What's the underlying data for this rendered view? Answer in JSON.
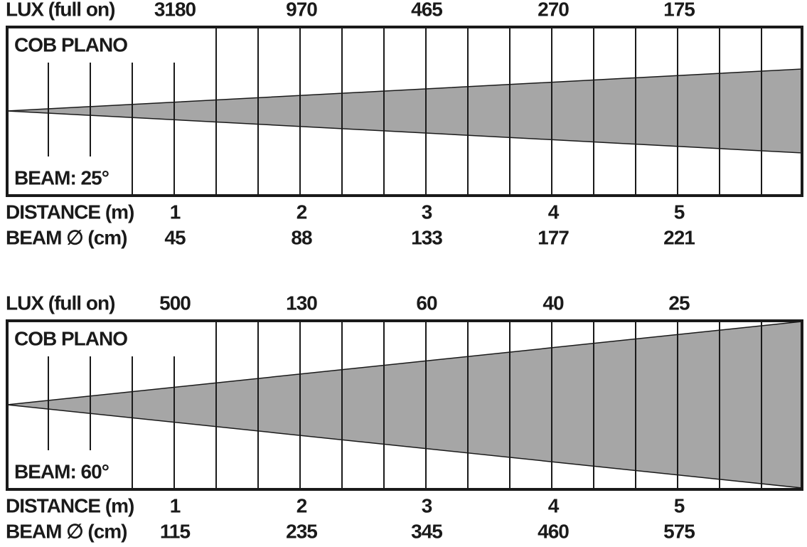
{
  "panels": [
    {
      "lux_label": "LUX (full on)",
      "lux": [
        3180,
        970,
        465,
        270,
        175
      ],
      "title": "COB PLANO",
      "beam": "BEAM: 25°",
      "distance_label": "DISTANCE (m)",
      "distances": [
        1,
        2,
        3,
        4,
        5
      ],
      "diameter_label": "BEAM ∅ (cm)",
      "diameters": [
        45,
        88,
        133,
        177,
        221
      ]
    },
    {
      "lux_label": "LUX (full on)",
      "lux": [
        500,
        130,
        60,
        40,
        25
      ],
      "title": "COB PLANO",
      "beam": "BEAM: 60°",
      "distance_label": "DISTANCE (m)",
      "distances": [
        1,
        2,
        3,
        4,
        5
      ],
      "diameter_label": "BEAM ∅ (cm)",
      "diameters": [
        115,
        235,
        345,
        460,
        575
      ]
    }
  ]
}
